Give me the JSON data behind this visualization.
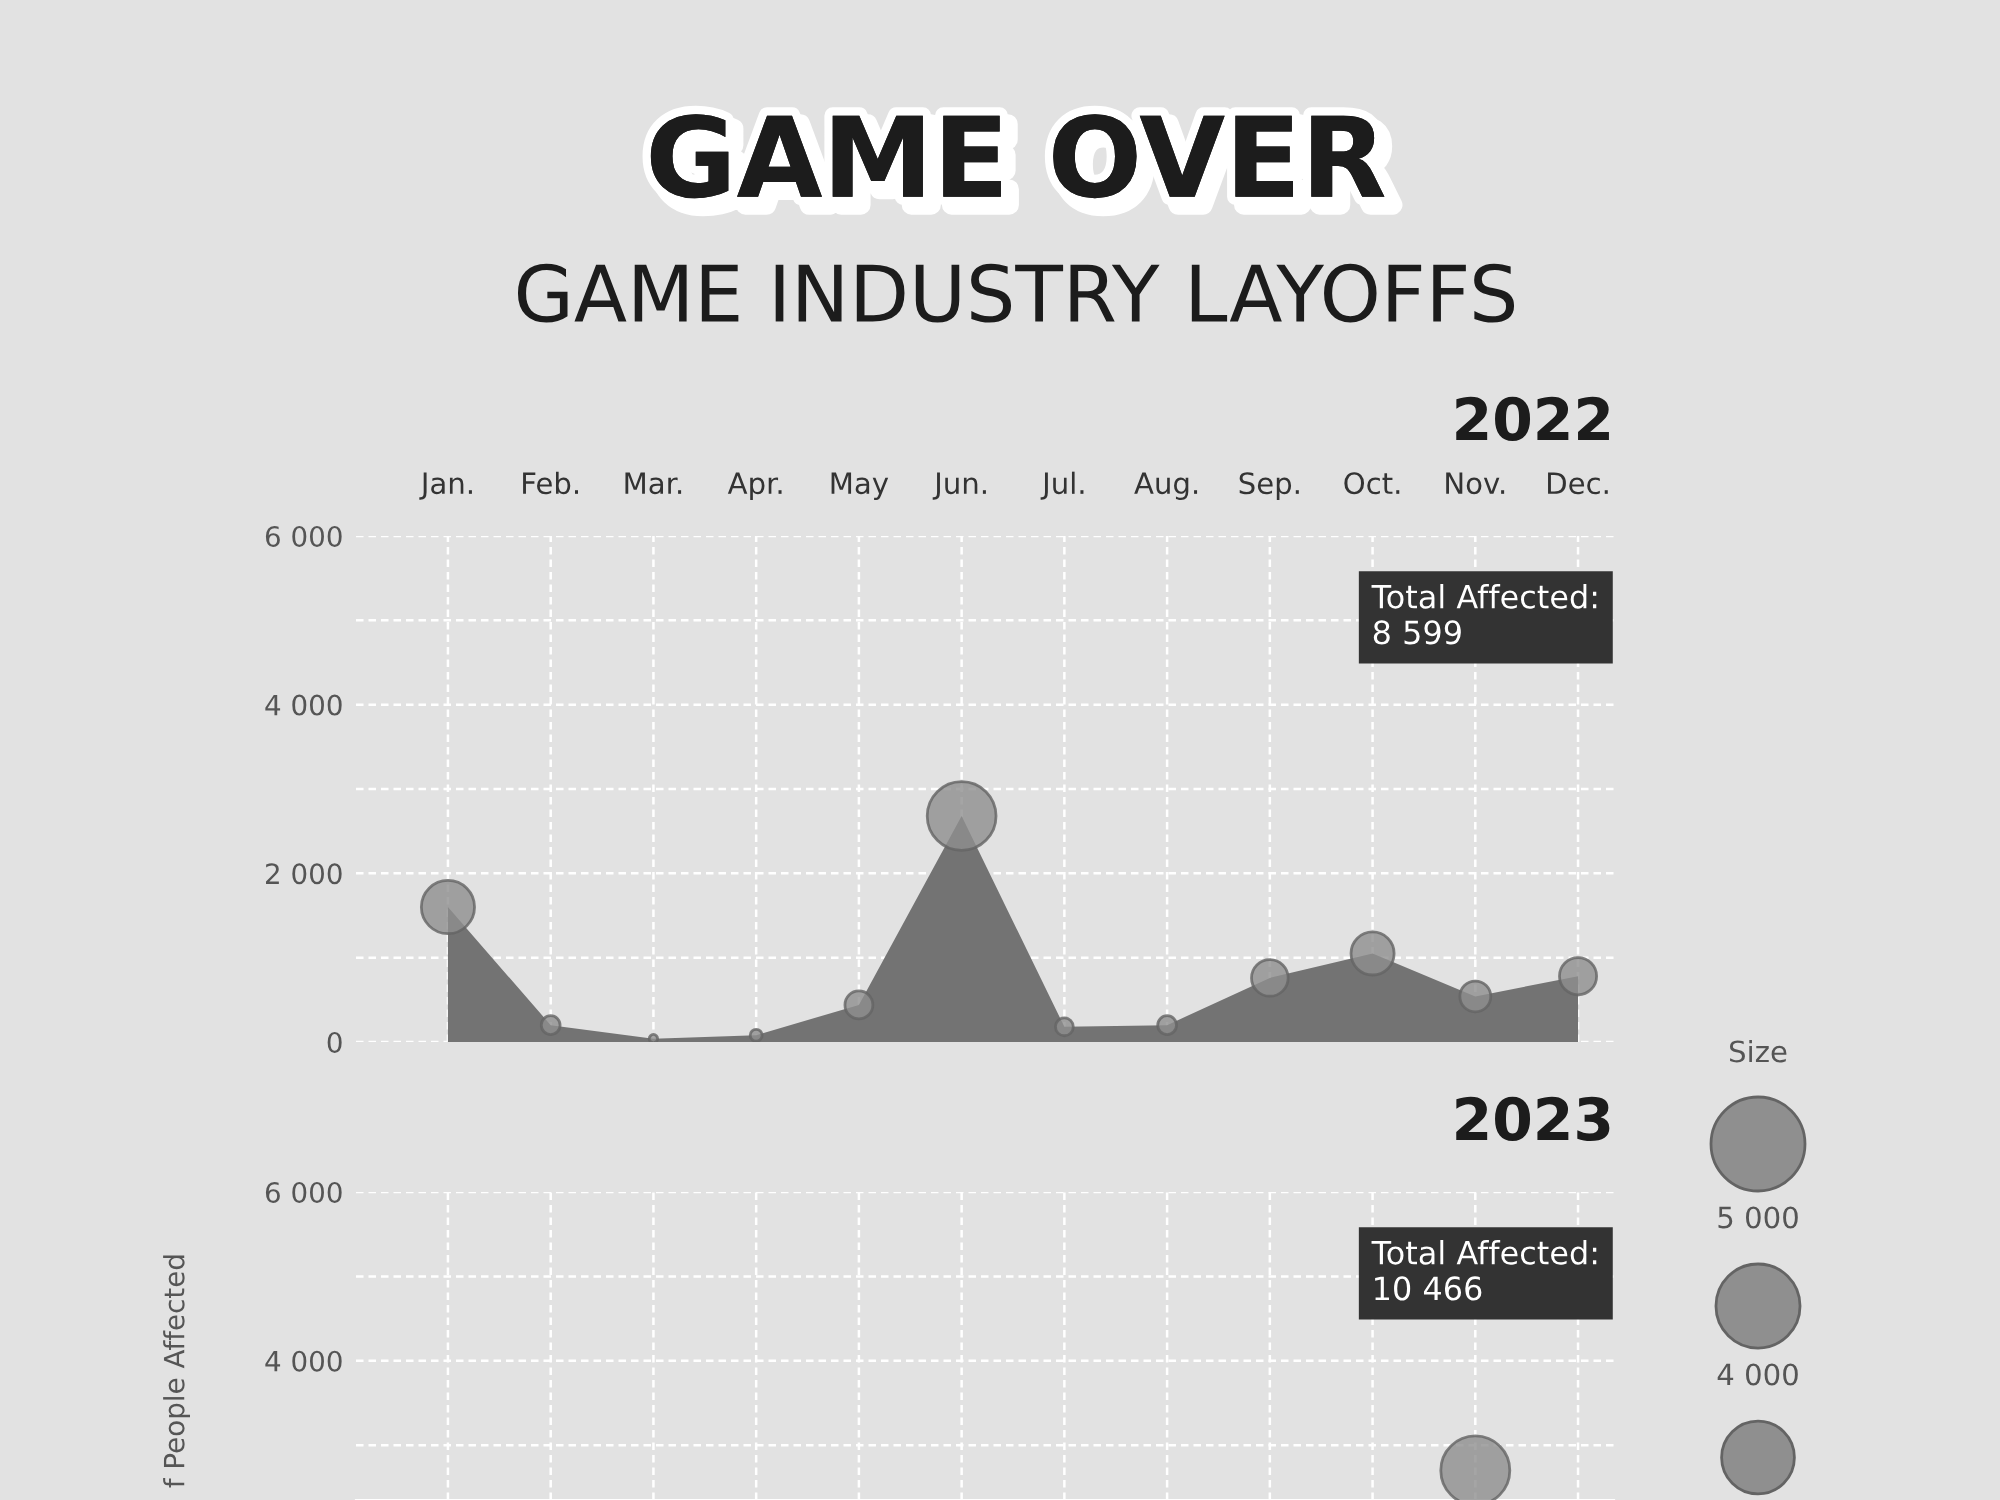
{
  "chart_data": [
    {
      "type": "other",
      "title": "GAME OVER",
      "subtitle": "GAME INDUSTRY LAYOFFS"
    },
    {
      "type": "area",
      "title": "2022",
      "categories": [
        "Jan.",
        "Feb.",
        "Mar.",
        "Apr.",
        "May",
        "Jun.",
        "Jul.",
        "Aug.",
        "Sep.",
        "Oct.",
        "Nov.",
        "Dec."
      ],
      "series": [
        {
          "type": "area",
          "color": "#737373",
          "values": [
            1600,
            200,
            40,
            80,
            440,
            2680,
            180,
            200,
            760,
            1050,
            540,
            780
          ]
        },
        {
          "type": "bubble",
          "color": "#8f8f8f",
          "values": [
            1600,
            200,
            40,
            80,
            440,
            2680,
            180,
            200,
            760,
            1050,
            540,
            780
          ],
          "sizes": [
            1600,
            200,
            40,
            80,
            440,
            2680,
            180,
            200,
            760,
            1050,
            540,
            780
          ]
        }
      ],
      "ylim": [
        0,
        6000
      ],
      "yticks": [
        0,
        {
          "value": 1000,
          "label": null
        },
        {
          "value": 2000,
          "label": "2 000"
        },
        {
          "value": 3000,
          "label": null
        },
        {
          "value": 4000,
          "label": "4 000"
        },
        {
          "value": 5000,
          "label": null
        },
        {
          "value": 6000,
          "label": "6 000"
        }
      ],
      "grid": true,
      "annotations": [
        "Total Affected:\n8 599"
      ],
      "legend_title": "Size",
      "size_legend": [
        {
          "value": 5000,
          "label": "5 000"
        },
        {
          "value": 4000,
          "label": "4 000"
        }
      ]
    },
    {
      "type": "bubble",
      "title": "2023",
      "ylabel": "f People Affected",
      "categories": [
        null,
        null,
        null,
        null,
        null,
        null,
        null,
        null,
        null,
        null,
        null,
        null
      ],
      "series": [
        {
          "color": "#8f8f8f",
          "values": [
            null,
            null,
            null,
            null,
            null,
            null,
            null,
            null,
            null,
            null,
            2700,
            null
          ],
          "sizes": [
            null,
            null,
            null,
            null,
            null,
            null,
            null,
            null,
            null,
            null,
            1,
            null
          ]
        }
      ],
      "ylim": [
        2350,
        6000
      ],
      "yticks": [
        {
          "value": 3000,
          "label": null
        },
        {
          "value": 4000,
          "label": "4 000"
        },
        {
          "value": 5000,
          "label": null
        },
        {
          "value": 6000,
          "label": "6 000"
        }
      ],
      "grid": true,
      "tick_labels": "y",
      "annotations": [
        "Total Affected:\n10 466"
      ]
    }
  ]
}
